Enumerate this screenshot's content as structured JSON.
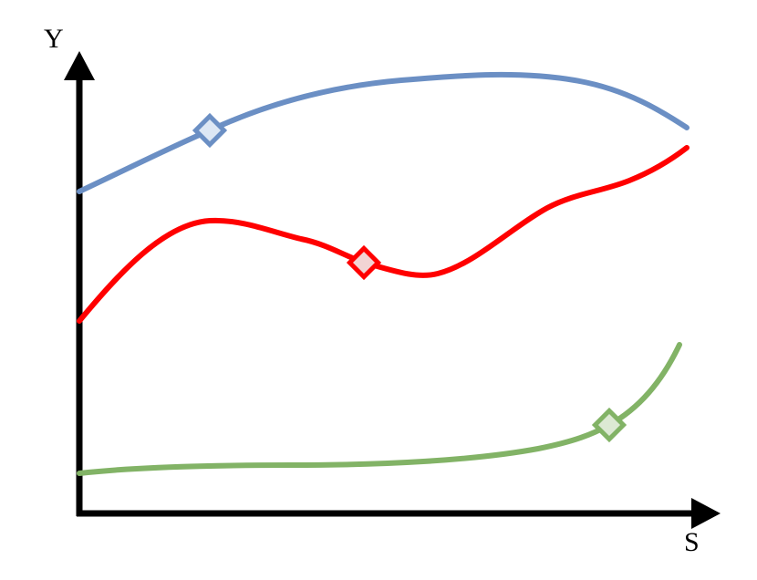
{
  "axes": {
    "y_label": "Y",
    "x_label": "S",
    "color": "#000000"
  },
  "curves": [
    {
      "id": "blue",
      "color": "#6b8fc4",
      "marker_fill": "#dde7f4",
      "marker_shape": "diamond"
    },
    {
      "id": "red",
      "color": "#ff0000",
      "marker_fill": "#f2d4d4",
      "marker_shape": "diamond"
    },
    {
      "id": "green",
      "color": "#82b366",
      "marker_fill": "#dce9d3",
      "marker_shape": "diamond"
    }
  ]
}
